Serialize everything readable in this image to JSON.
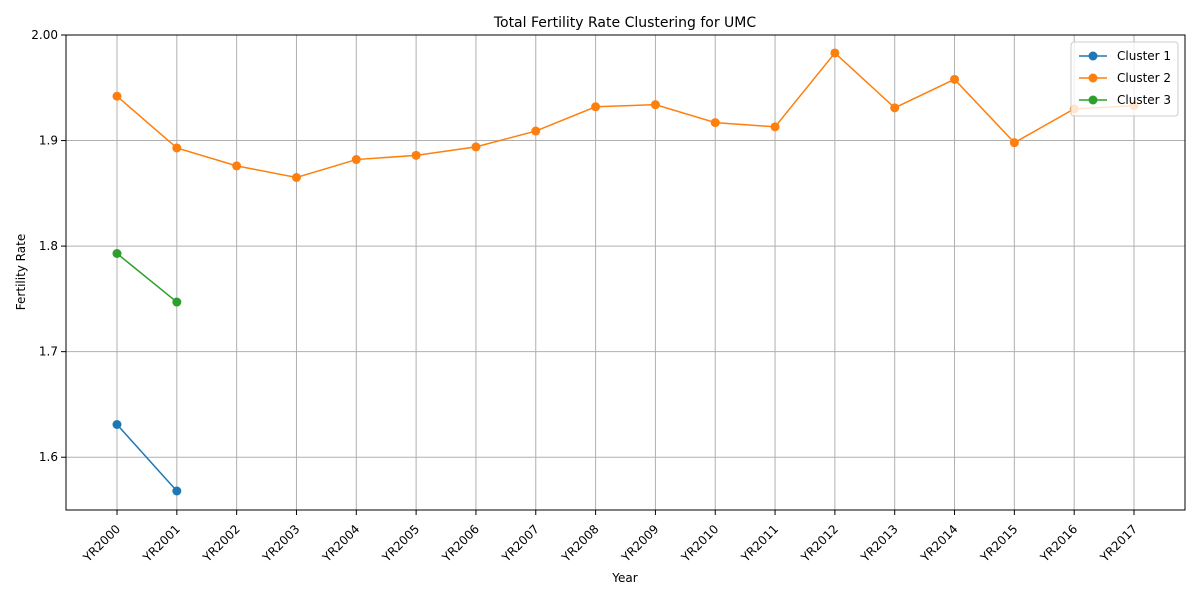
{
  "chart_data": {
    "type": "line",
    "title": "Total Fertility Rate Clustering for UMC",
    "xlabel": "Year",
    "ylabel": "Fertility Rate",
    "categories": [
      "YR2000",
      "YR2001",
      "YR2002",
      "YR2003",
      "YR2004",
      "YR2005",
      "YR2006",
      "YR2007",
      "YR2008",
      "YR2009",
      "YR2010",
      "YR2011",
      "YR2012",
      "YR2013",
      "YR2014",
      "YR2015",
      "YR2016",
      "YR2017"
    ],
    "ylim": [
      1.55,
      2.0
    ],
    "yticks": [
      1.6,
      1.7,
      1.8,
      1.9,
      2.0
    ],
    "ytick_labels": [
      "1.6",
      "1.7",
      "1.8",
      "1.9",
      "2.00"
    ],
    "grid": true,
    "legend_position": "top-right",
    "series": [
      {
        "name": "Cluster 1",
        "color": "#1f77b4",
        "values": [
          1.631,
          1.568,
          null,
          null,
          null,
          null,
          null,
          null,
          null,
          null,
          null,
          null,
          null,
          null,
          null,
          null,
          null,
          null
        ]
      },
      {
        "name": "Cluster 2",
        "color": "#ff7f0e",
        "values": [
          1.942,
          1.893,
          1.876,
          1.865,
          1.882,
          1.886,
          1.894,
          1.909,
          1.932,
          1.934,
          1.917,
          1.913,
          1.983,
          1.931,
          1.958,
          1.898,
          1.93,
          1.933
        ]
      },
      {
        "name": "Cluster 3",
        "color": "#2ca02c",
        "values": [
          1.793,
          1.747,
          null,
          null,
          null,
          null,
          null,
          null,
          null,
          null,
          null,
          null,
          null,
          null,
          null,
          null,
          null,
          null
        ]
      }
    ]
  }
}
